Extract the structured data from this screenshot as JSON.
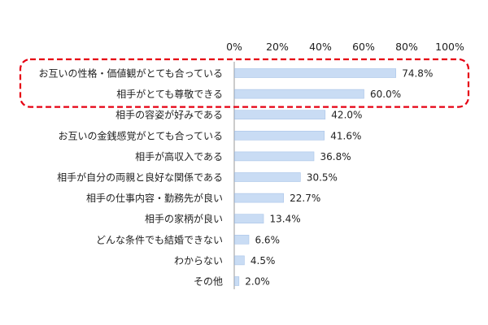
{
  "chart_data": {
    "type": "bar",
    "orientation": "horizontal",
    "title": "",
    "xlabel": "",
    "ylabel": "",
    "xlim": [
      0,
      100
    ],
    "x_ticks": [
      "0%",
      "20%",
      "40%",
      "60%",
      "80%",
      "100%"
    ],
    "x_tick_values": [
      0,
      20,
      40,
      60,
      80,
      100
    ],
    "grid": false,
    "legend": "none",
    "categories": [
      "お互いの性格・価値観がとても合っている",
      "相手がとても尊敬できる",
      "相手の容姿が好みである",
      "お互いの金銭感覚がとても合っている",
      "相手が高収入である",
      "相手が自分の両親と良好な関係である",
      "相手の仕事内容・勤務先が良い",
      "相手の家柄が良い",
      "どんな条件でも結婚できない",
      "わからない",
      "その他"
    ],
    "values": [
      74.8,
      60.0,
      42.0,
      41.6,
      36.8,
      30.5,
      22.7,
      13.4,
      6.6,
      4.5,
      2.0
    ],
    "value_labels": [
      "74.8%",
      "60.0%",
      "42.0%",
      "41.6%",
      "36.8%",
      "30.5%",
      "22.7%",
      "13.4%",
      "6.6%",
      "4.5%",
      "2.0%"
    ],
    "highlight": {
      "rows": [
        0,
        1
      ],
      "style": "dashed-rounded-box"
    },
    "colors": {
      "bar_fill": "#c9dcf4",
      "bar_stroke": "#a9c4e8",
      "highlight": "#e60012",
      "axis": "#999999",
      "text": "#222222"
    }
  }
}
